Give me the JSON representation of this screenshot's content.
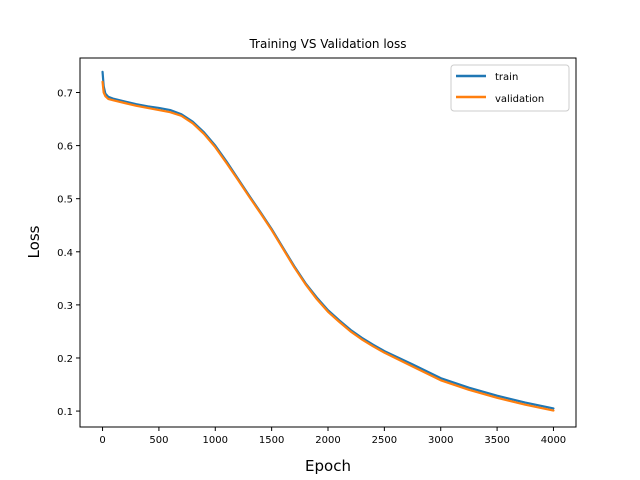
{
  "chart_data": {
    "type": "line",
    "title": "Training VS Validation loss",
    "xlabel": "Epoch",
    "ylabel": "Loss",
    "xlim": [
      -200,
      4200
    ],
    "ylim": [
      0.07,
      0.765
    ],
    "xticks": [
      0,
      500,
      1000,
      1500,
      2000,
      2500,
      3000,
      3500,
      4000
    ],
    "yticks": [
      0.1,
      0.2,
      0.3,
      0.4,
      0.5,
      0.6,
      0.7
    ],
    "grid": false,
    "legend_position": "top-right",
    "series": [
      {
        "name": "train",
        "color": "#1f77b4",
        "x": [
          0,
          10,
          25,
          50,
          100,
          200,
          300,
          400,
          500,
          600,
          700,
          800,
          900,
          1000,
          1100,
          1200,
          1300,
          1400,
          1500,
          1600,
          1700,
          1800,
          1900,
          2000,
          2100,
          2200,
          2300,
          2400,
          2500,
          2750,
          3000,
          3250,
          3500,
          3750,
          4000
        ],
        "y": [
          0.739,
          0.712,
          0.698,
          0.692,
          0.688,
          0.683,
          0.678,
          0.674,
          0.671,
          0.667,
          0.659,
          0.645,
          0.625,
          0.6,
          0.57,
          0.538,
          0.506,
          0.475,
          0.443,
          0.408,
          0.373,
          0.341,
          0.314,
          0.29,
          0.271,
          0.253,
          0.238,
          0.225,
          0.213,
          0.188,
          0.162,
          0.144,
          0.129,
          0.116,
          0.105
        ]
      },
      {
        "name": "validation",
        "color": "#ff7f0e",
        "x": [
          0,
          10,
          25,
          50,
          100,
          200,
          300,
          400,
          500,
          600,
          700,
          800,
          900,
          1000,
          1100,
          1200,
          1300,
          1400,
          1500,
          1600,
          1700,
          1800,
          1900,
          2000,
          2100,
          2200,
          2300,
          2400,
          2500,
          2750,
          3000,
          3250,
          3500,
          3750,
          4000
        ],
        "y": [
          0.72,
          0.7,
          0.693,
          0.688,
          0.685,
          0.68,
          0.675,
          0.671,
          0.667,
          0.663,
          0.656,
          0.642,
          0.622,
          0.597,
          0.567,
          0.536,
          0.504,
          0.473,
          0.441,
          0.406,
          0.371,
          0.339,
          0.311,
          0.287,
          0.268,
          0.25,
          0.235,
          0.222,
          0.21,
          0.184,
          0.158,
          0.14,
          0.125,
          0.112,
          0.101
        ]
      }
    ]
  }
}
